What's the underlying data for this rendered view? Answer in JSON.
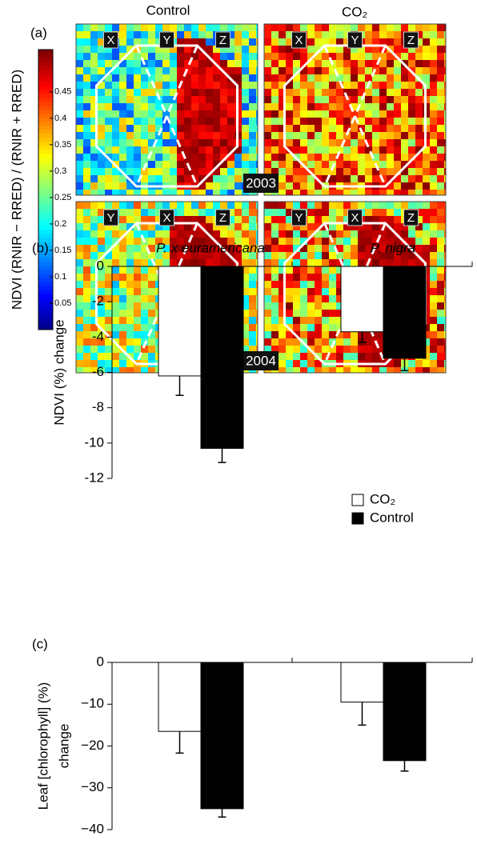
{
  "chart_data": [
    {
      "type": "heatmap",
      "panel_label": "(a)",
      "column_labels": [
        "Control",
        "CO₂"
      ],
      "year_labels": [
        "2003",
        "2004"
      ],
      "plot_labels": [
        [
          "X",
          "Y",
          "Z"
        ],
        [
          "X",
          "Y",
          "Z"
        ],
        [
          "Y",
          "X",
          "Z"
        ],
        [
          "Y",
          "X",
          "Z"
        ]
      ],
      "colorbar_label": "NDVI (RNIR − RRED) / (RNIR + RRED)",
      "clim": [
        0,
        0.53
      ],
      "cticks": [
        0.05,
        0.1,
        0.15,
        0.2,
        0.25,
        0.3,
        0.35,
        0.4,
        0.45
      ]
    },
    {
      "type": "bar",
      "panel_label": "(b)",
      "categories": [
        "P. x euramericana",
        "P. nigra"
      ],
      "y_label": "NDVI (%) change",
      "series": [
        {
          "name": "CO₂",
          "color": "#ffffff",
          "values": [
            -6.2,
            -3.7
          ],
          "errors": [
            1.1,
            0.6
          ]
        },
        {
          "name": "Control",
          "color": "#000000",
          "values": [
            -10.3,
            -5.2
          ],
          "errors": [
            0.8,
            0.7
          ]
        }
      ],
      "ylim": [
        -12,
        0
      ],
      "yticks": [
        0,
        -2,
        -4,
        -6,
        -8,
        -10,
        -12
      ],
      "legend": "lower right"
    },
    {
      "type": "bar",
      "panel_label": "(c)",
      "y_label": [
        "Leaf [chlorophyll] (%)",
        "change"
      ],
      "series": [
        {
          "color": "#ffffff",
          "values": [
            -16.5,
            -9.5
          ],
          "errors": [
            5.2,
            5.5
          ]
        },
        {
          "color": "#000000",
          "values": [
            -35,
            -23.5
          ],
          "errors": [
            2,
            2.5
          ]
        }
      ],
      "ylim": [
        -40,
        0
      ],
      "yticks": [
        0,
        {
          "value": -10,
          "label": "−10"
        },
        {
          "value": -20,
          "label": "−20"
        },
        {
          "value": -30,
          "label": "−30"
        },
        {
          "value": -40,
          "label": "−40"
        }
      ]
    }
  ]
}
